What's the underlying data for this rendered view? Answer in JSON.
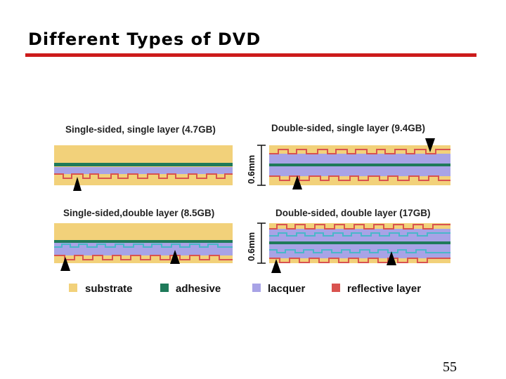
{
  "slide": {
    "title": "Different Types of DVD",
    "page_number": "55"
  },
  "disc_types": [
    {
      "label": "Single-sided, single layer (4.7GB)"
    },
    {
      "label": "Double-sided, single layer (9.4GB)"
    },
    {
      "label": "Single-sided,double layer (8.5GB)"
    },
    {
      "label": "Double-sided,  double layer (17GB)"
    }
  ],
  "thickness": {
    "top": "0.6mm",
    "bottom": "0.6mm"
  },
  "legend": [
    {
      "label": "substrate",
      "color": "#f2d17a"
    },
    {
      "label": "adhesive",
      "color": "#1f7a5a"
    },
    {
      "label": "lacquer",
      "color": "#a8a3e6"
    },
    {
      "label": "reflective layer",
      "color": "#d9534f"
    }
  ]
}
